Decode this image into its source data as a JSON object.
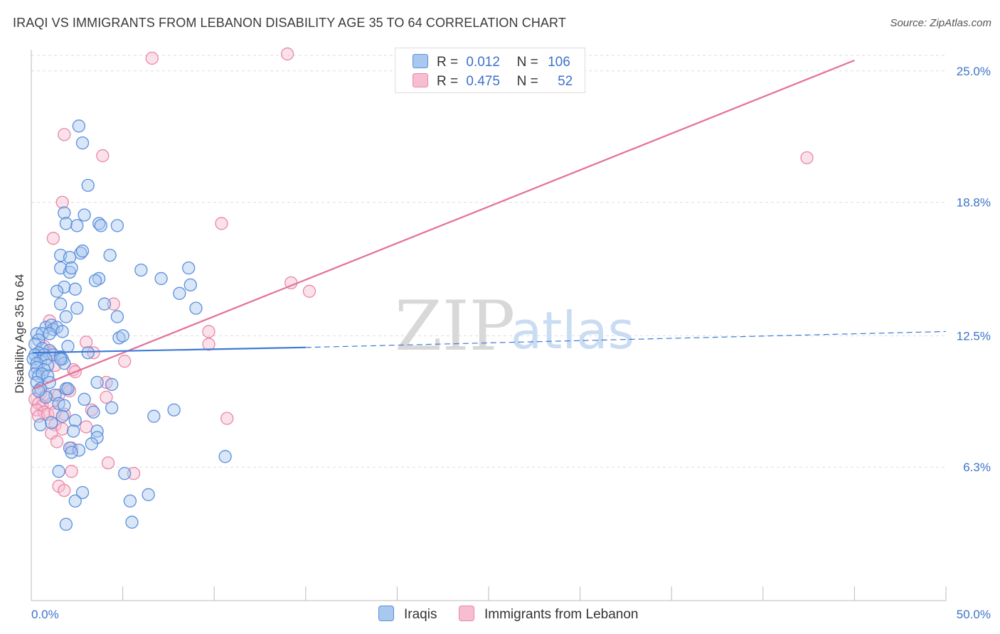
{
  "title": "IRAQI VS IMMIGRANTS FROM LEBANON DISABILITY AGE 35 TO 64 CORRELATION CHART",
  "source": "Source: ZipAtlas.com",
  "watermark": {
    "zip": "ZIP",
    "atlas": "atlas"
  },
  "legend": {
    "rows": [
      {
        "r_label": "R =",
        "r_value": "0.012",
        "n_label": "N =",
        "n_value": "106"
      },
      {
        "r_label": "R =",
        "r_value": "0.475",
        "n_label": "N =",
        "n_value": "52"
      }
    ]
  },
  "bottom_legend": [
    "Iraqis",
    "Immigrants from Lebanon"
  ],
  "colors": {
    "blue_fill": "#a9c8f0",
    "blue_stroke": "#5b8fdb",
    "blue_line": "#3d7bd4",
    "pink_fill": "#f7bdd0",
    "pink_stroke": "#e987a8",
    "pink_line": "#e46f99",
    "tick_text": "#3d72c9",
    "grid": "#dddddd"
  },
  "chart_data": {
    "type": "scatter",
    "title": "IRAQI VS IMMIGRANTS FROM LEBANON DISABILITY AGE 35 TO 64 CORRELATION CHART",
    "xlabel": "",
    "ylabel": "Disability Age 35 to 64",
    "xlim": [
      0,
      50
    ],
    "ylim": [
      0,
      26
    ],
    "x_tick_labels": [
      "0.0%",
      "50.0%"
    ],
    "y_ticks": [
      6.3,
      12.5,
      18.8,
      25.0
    ],
    "y_tick_labels": [
      "6.3%",
      "12.5%",
      "18.8%",
      "25.0%"
    ],
    "grid": true,
    "series": [
      {
        "name": "Iraqis",
        "r": 0.012,
        "n": 106,
        "trend": {
          "x0": 0.1,
          "y0": 11.7,
          "x1": 15.0,
          "y1": 11.95,
          "dashed_to_x": 50.0,
          "dashed_to_y": 12.7
        },
        "points": [
          [
            2.6,
            22.4
          ],
          [
            2.8,
            21.6
          ],
          [
            3.1,
            19.6
          ],
          [
            1.8,
            18.3
          ],
          [
            2.9,
            18.2
          ],
          [
            3.7,
            17.8
          ],
          [
            1.9,
            17.8
          ],
          [
            2.5,
            17.7
          ],
          [
            3.8,
            17.7
          ],
          [
            4.7,
            17.7
          ],
          [
            1.6,
            16.3
          ],
          [
            2.7,
            16.4
          ],
          [
            2.8,
            16.5
          ],
          [
            4.3,
            16.3
          ],
          [
            2.1,
            16.2
          ],
          [
            1.6,
            15.7
          ],
          [
            2.1,
            15.5
          ],
          [
            2.2,
            15.7
          ],
          [
            6.0,
            15.6
          ],
          [
            8.6,
            15.7
          ],
          [
            3.7,
            15.2
          ],
          [
            3.5,
            15.1
          ],
          [
            7.1,
            15.2
          ],
          [
            1.8,
            14.8
          ],
          [
            2.4,
            14.7
          ],
          [
            1.4,
            14.6
          ],
          [
            8.1,
            14.5
          ],
          [
            8.7,
            14.9
          ],
          [
            1.6,
            14.0
          ],
          [
            4.0,
            14.0
          ],
          [
            2.5,
            13.8
          ],
          [
            9.0,
            13.8
          ],
          [
            1.9,
            13.4
          ],
          [
            4.7,
            13.4
          ],
          [
            0.8,
            12.9
          ],
          [
            1.1,
            13.0
          ],
          [
            1.2,
            12.8
          ],
          [
            1.4,
            12.9
          ],
          [
            0.3,
            12.6
          ],
          [
            0.6,
            12.6
          ],
          [
            1.0,
            12.6
          ],
          [
            1.7,
            12.7
          ],
          [
            0.4,
            12.3
          ],
          [
            4.8,
            12.4
          ],
          [
            5.0,
            12.5
          ],
          [
            0.2,
            12.1
          ],
          [
            2.0,
            12.0
          ],
          [
            0.6,
            11.9
          ],
          [
            1.0,
            11.8
          ],
          [
            0.4,
            11.7
          ],
          [
            0.2,
            11.6
          ],
          [
            0.7,
            11.6
          ],
          [
            1.2,
            11.6
          ],
          [
            1.6,
            11.5
          ],
          [
            1.7,
            11.4
          ],
          [
            3.1,
            11.7
          ],
          [
            0.1,
            11.4
          ],
          [
            0.5,
            11.3
          ],
          [
            0.8,
            11.4
          ],
          [
            0.3,
            11.2
          ],
          [
            0.9,
            11.1
          ],
          [
            1.8,
            11.2
          ],
          [
            1.6,
            11.4
          ],
          [
            0.3,
            11.0
          ],
          [
            0.7,
            10.9
          ],
          [
            0.2,
            10.7
          ],
          [
            0.4,
            10.6
          ],
          [
            0.6,
            10.7
          ],
          [
            0.9,
            10.6
          ],
          [
            0.3,
            10.3
          ],
          [
            1.0,
            10.3
          ],
          [
            3.6,
            10.3
          ],
          [
            4.4,
            10.2
          ],
          [
            0.5,
            10.0
          ],
          [
            1.9,
            10.0
          ],
          [
            2.0,
            10.0
          ],
          [
            1.3,
            9.7
          ],
          [
            0.8,
            9.6
          ],
          [
            1.5,
            9.3
          ],
          [
            1.8,
            9.2
          ],
          [
            4.4,
            9.1
          ],
          [
            6.7,
            8.7
          ],
          [
            7.8,
            9.0
          ],
          [
            3.4,
            8.9
          ],
          [
            1.7,
            8.7
          ],
          [
            2.4,
            8.5
          ],
          [
            0.5,
            8.3
          ],
          [
            1.1,
            8.4
          ],
          [
            3.6,
            8.0
          ],
          [
            2.3,
            8.0
          ],
          [
            3.6,
            7.7
          ],
          [
            2.1,
            7.2
          ],
          [
            3.3,
            7.4
          ],
          [
            2.6,
            7.1
          ],
          [
            2.2,
            7.0
          ],
          [
            10.6,
            6.8
          ],
          [
            1.5,
            6.1
          ],
          [
            5.1,
            6.0
          ],
          [
            2.8,
            5.1
          ],
          [
            6.4,
            5.0
          ],
          [
            2.4,
            4.7
          ],
          [
            5.4,
            4.7
          ],
          [
            1.9,
            3.6
          ],
          [
            5.5,
            3.7
          ],
          [
            0.4,
            9.9
          ],
          [
            2.9,
            9.5
          ]
        ]
      },
      {
        "name": "Immigrants from Lebanon",
        "r": 0.475,
        "n": 52,
        "trend": {
          "x0": 0.1,
          "y0": 10.0,
          "x1": 45.0,
          "y1": 25.5
        },
        "points": [
          [
            14.0,
            25.8
          ],
          [
            6.6,
            25.6
          ],
          [
            1.8,
            22.0
          ],
          [
            3.9,
            21.0
          ],
          [
            42.4,
            20.9
          ],
          [
            1.7,
            18.8
          ],
          [
            10.4,
            17.8
          ],
          [
            1.2,
            17.1
          ],
          [
            14.2,
            15.0
          ],
          [
            15.2,
            14.6
          ],
          [
            4.5,
            14.0
          ],
          [
            1.0,
            13.2
          ],
          [
            9.7,
            12.7
          ],
          [
            3.0,
            12.2
          ],
          [
            9.7,
            12.1
          ],
          [
            0.7,
            12.0
          ],
          [
            3.4,
            11.7
          ],
          [
            1.1,
            11.7
          ],
          [
            1.3,
            11.1
          ],
          [
            5.1,
            11.3
          ],
          [
            2.3,
            10.9
          ],
          [
            2.4,
            10.8
          ],
          [
            4.1,
            10.3
          ],
          [
            2.0,
            10.0
          ],
          [
            2.1,
            9.9
          ],
          [
            0.5,
            9.8
          ],
          [
            0.8,
            9.7
          ],
          [
            1.5,
            9.7
          ],
          [
            4.1,
            9.6
          ],
          [
            0.2,
            9.5
          ],
          [
            0.4,
            9.3
          ],
          [
            0.6,
            9.2
          ],
          [
            1.1,
            9.3
          ],
          [
            0.3,
            9.0
          ],
          [
            0.7,
            8.9
          ],
          [
            0.4,
            8.7
          ],
          [
            0.9,
            8.8
          ],
          [
            3.3,
            9.0
          ],
          [
            10.7,
            8.6
          ],
          [
            1.8,
            8.8
          ],
          [
            1.3,
            8.3
          ],
          [
            1.7,
            8.1
          ],
          [
            3.0,
            8.2
          ],
          [
            1.1,
            7.9
          ],
          [
            1.4,
            7.5
          ],
          [
            2.2,
            7.2
          ],
          [
            4.2,
            6.5
          ],
          [
            1.5,
            5.4
          ],
          [
            1.8,
            5.2
          ],
          [
            2.2,
            6.1
          ],
          [
            5.6,
            6.0
          ],
          [
            1.3,
            8.9
          ]
        ]
      }
    ]
  }
}
